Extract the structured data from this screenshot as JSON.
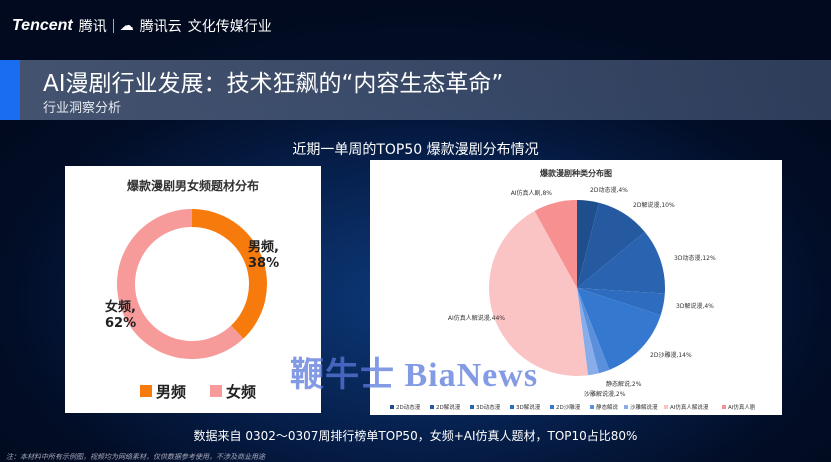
{
  "header": {
    "brand": "Tencent",
    "brand_cn": "腾讯",
    "cloud": "腾讯云",
    "division": "文化传媒行业"
  },
  "banner": {
    "title": "AI漫剧行业发展：技术狂飙的“内容生态革命”",
    "subtitle": "行业洞察分析"
  },
  "heading": "近期一单周的TOP50 爆款漫剧分布情况",
  "watermark": "鞭牛士 BiaNews",
  "source": "数据来自 0302～0307周排行榜单TOP50，女频+AI仿真人题材，TOP10占比80%",
  "footnote": "注：本材料中所有示例图，视频均为网络素材，仅供数据参考使用，不涉及商业用途",
  "chart_data": [
    {
      "type": "pie",
      "subtype": "donut",
      "title": "爆款漫剧男女频题材分布",
      "categories": [
        "男频",
        "女频"
      ],
      "values": [
        38,
        62
      ],
      "labels": [
        "男频,\n38%",
        "女频,\n62%"
      ],
      "colors": [
        "#f77b0c",
        "#f79a9a"
      ],
      "legend": "bottom"
    },
    {
      "type": "pie",
      "title": "爆款漫剧种类分布图",
      "categories": [
        "2D动态漫",
        "2D解说漫",
        "3D动态漫",
        "3D解说漫",
        "2D沙雕漫",
        "静态解说",
        "沙雕解说漫",
        "AI仿真人解说漫",
        "AI仿真人剧"
      ],
      "values": [
        4,
        10,
        12,
        4,
        14,
        2,
        2,
        44,
        8
      ],
      "labels": [
        "2D动态漫,4%",
        "2D解说漫,10%",
        "3D动态漫,12%",
        "3D解说漫,4%",
        "2D沙雕漫,14%",
        "静态解说,2%",
        "沙雕解说漫,2%",
        "AI仿真人解说漫,44%",
        "AI仿真人剧,8%"
      ],
      "colors": [
        "#1f4e8c",
        "#255aa0",
        "#2a63b0",
        "#2e6cbf",
        "#3478d0",
        "#5a8fdc",
        "#89acea",
        "#fbc4c4",
        "#f79090"
      ],
      "legend": "bottom"
    }
  ]
}
